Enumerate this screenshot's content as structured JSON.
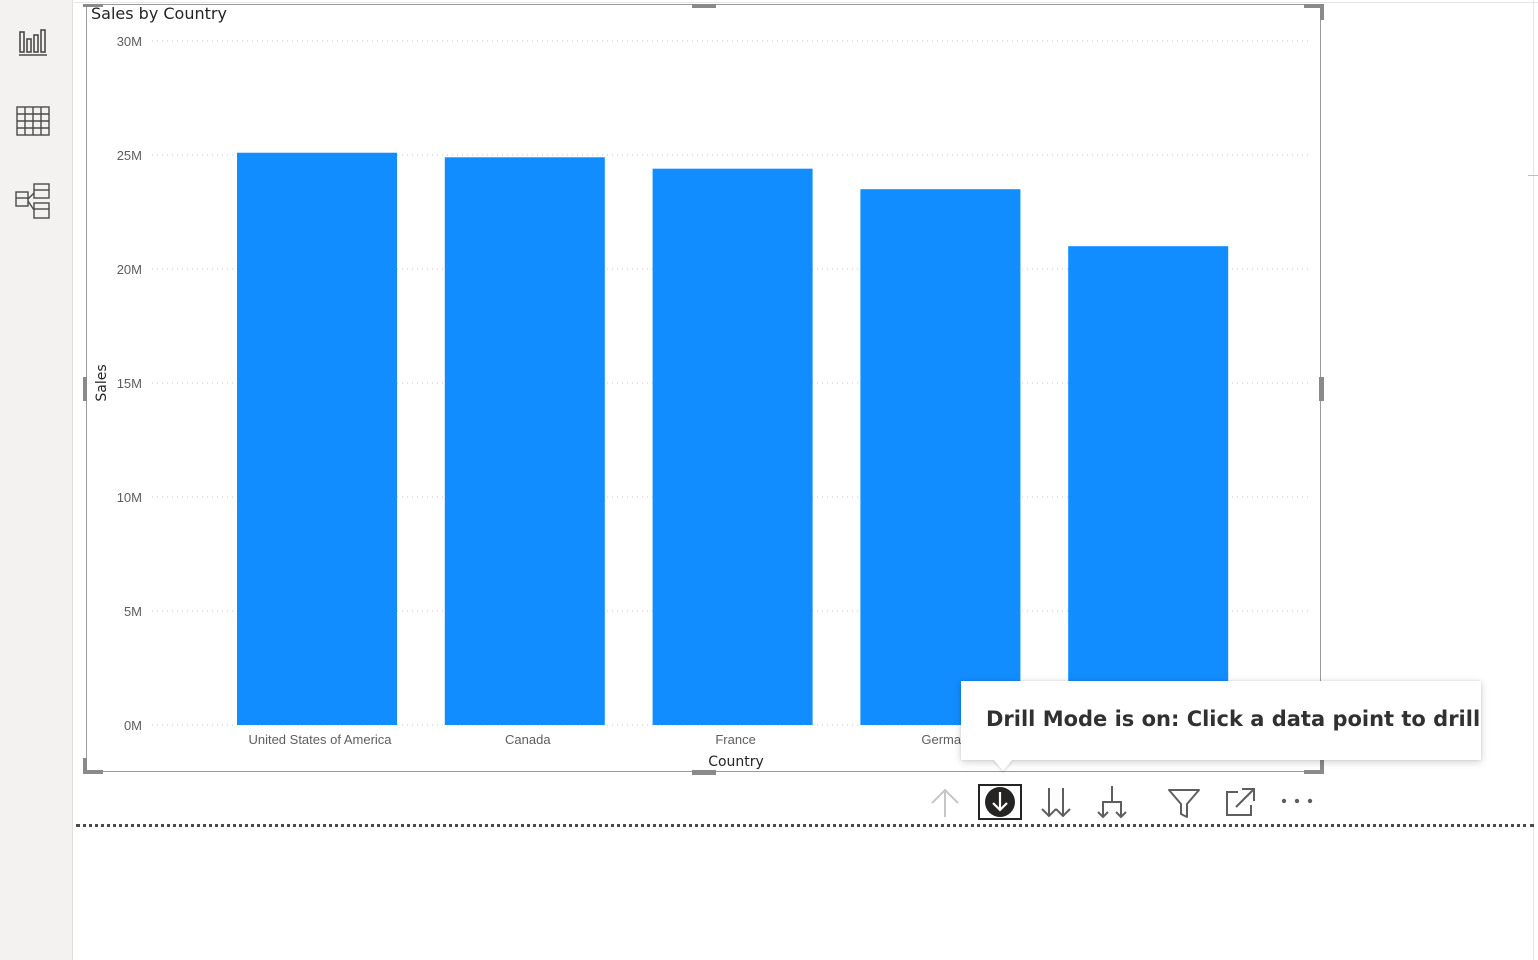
{
  "left_rail": {
    "items": [
      {
        "name": "report-view",
        "icon": "bar-chart-icon"
      },
      {
        "name": "data-view",
        "icon": "table-grid-icon"
      },
      {
        "name": "model-view",
        "icon": "model-diagram-icon"
      }
    ]
  },
  "visual": {
    "title": "Sales by Country"
  },
  "chart_data": {
    "type": "bar",
    "title": "Sales by Country",
    "xlabel": "Country",
    "ylabel": "Sales",
    "categories": [
      "United States of America",
      "Canada",
      "France",
      "Germany",
      ""
    ],
    "category_labels_visible": [
      "United States of America",
      "Canada",
      "France",
      "Germar",
      ""
    ],
    "values": [
      25.1,
      24.9,
      24.4,
      23.5,
      21.0
    ],
    "value_unit": "M",
    "ylim": [
      0,
      30
    ],
    "yticks": [
      "0M",
      "5M",
      "10M",
      "15M",
      "20M",
      "25M",
      "30M"
    ],
    "ytick_values": [
      0,
      5,
      10,
      15,
      20,
      25,
      30
    ],
    "grid": true,
    "bar_color": "#118dff"
  },
  "tooltip": {
    "text": "Drill Mode is on: Click a data point to drill"
  },
  "visual_toolbar": {
    "items": [
      {
        "name": "drill-up",
        "icon": "arrow-up-icon",
        "enabled": false
      },
      {
        "name": "drill-mode",
        "icon": "drill-down-circle-icon",
        "active": true
      },
      {
        "name": "go-to-next-level",
        "icon": "double-arrow-down-icon"
      },
      {
        "name": "expand-next-level",
        "icon": "expand-hierarchy-icon"
      },
      {
        "name": "filter",
        "icon": "filter-icon"
      },
      {
        "name": "focus-mode",
        "icon": "focus-mode-icon"
      },
      {
        "name": "more-options",
        "icon": "more-options-icon"
      }
    ]
  },
  "colors": {
    "accent": "#118dff",
    "rail_bg": "#f3f2f1",
    "text": "#252423",
    "tick": "#605e5c"
  }
}
